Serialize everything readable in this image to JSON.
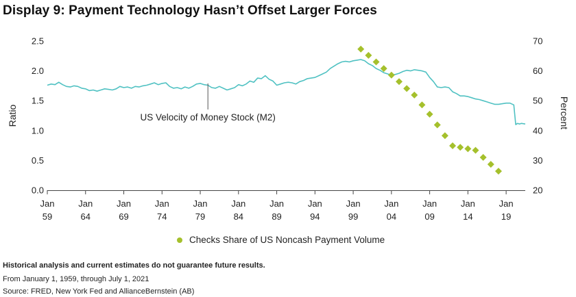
{
  "title": "Display 9: Payment Technology Hasn’t Offset Larger Forces",
  "footnotes": {
    "disclaimer": "Historical analysis and current estimates do not guarantee future results.",
    "period": "From January 1, 1959, through July 1, 2021",
    "source": "Source: FRED, New York Fed and AllianceBernstein (AB)"
  },
  "colors": {
    "velocity": "#4fc1c2",
    "checks": "#a5c02c",
    "axis": "#444444"
  },
  "chart_data": {
    "type": "line",
    "left_axis": {
      "label": "Ratio",
      "ticks": [
        "0.0",
        "0.5",
        "1.0",
        "1.5",
        "2.0",
        "2.5"
      ],
      "range": [
        0,
        2.5
      ]
    },
    "right_axis": {
      "label": "Percent",
      "ticks": [
        "20",
        "30",
        "40",
        "50",
        "60",
        "70"
      ],
      "range": [
        20,
        70
      ]
    },
    "x_ticks": [
      {
        "year": 1959,
        "top": "Jan",
        "bottom": "59"
      },
      {
        "year": 1964,
        "top": "Jan",
        "bottom": "64"
      },
      {
        "year": 1969,
        "top": "Jan",
        "bottom": "69"
      },
      {
        "year": 1974,
        "top": "Jan",
        "bottom": "74"
      },
      {
        "year": 1979,
        "top": "Jan",
        "bottom": "79"
      },
      {
        "year": 1984,
        "top": "Jan",
        "bottom": "84"
      },
      {
        "year": 1989,
        "top": "Jan",
        "bottom": "89"
      },
      {
        "year": 1994,
        "top": "Jan",
        "bottom": "94"
      },
      {
        "year": 1999,
        "top": "Jan",
        "bottom": "99"
      },
      {
        "year": 2004,
        "top": "Jan",
        "bottom": "04"
      },
      {
        "year": 2009,
        "top": "Jan",
        "bottom": "09"
      },
      {
        "year": 2014,
        "top": "Jan",
        "bottom": "14"
      },
      {
        "year": 2019,
        "top": "Jan",
        "bottom": "19"
      }
    ],
    "x_range": [
      1959,
      2021.5
    ],
    "annotation": {
      "text": "US Velocity of Money Stock (M2)",
      "x": 1980,
      "y": 1.79
    },
    "series": [
      {
        "name": "US Velocity of Money Stock (M2)",
        "axis": "left",
        "points": [
          [
            1959,
            1.76
          ],
          [
            1959.5,
            1.78
          ],
          [
            1960,
            1.77
          ],
          [
            1960.5,
            1.81
          ],
          [
            1961,
            1.77
          ],
          [
            1961.5,
            1.74
          ],
          [
            1962,
            1.73
          ],
          [
            1962.5,
            1.75
          ],
          [
            1963,
            1.74
          ],
          [
            1963.5,
            1.71
          ],
          [
            1964,
            1.7
          ],
          [
            1964.5,
            1.67
          ],
          [
            1965,
            1.68
          ],
          [
            1965.5,
            1.66
          ],
          [
            1966,
            1.68
          ],
          [
            1966.5,
            1.7
          ],
          [
            1967,
            1.69
          ],
          [
            1967.5,
            1.68
          ],
          [
            1968,
            1.7
          ],
          [
            1968.5,
            1.74
          ],
          [
            1969,
            1.72
          ],
          [
            1969.5,
            1.73
          ],
          [
            1970,
            1.71
          ],
          [
            1970.5,
            1.74
          ],
          [
            1971,
            1.73
          ],
          [
            1971.5,
            1.75
          ],
          [
            1972,
            1.76
          ],
          [
            1972.5,
            1.78
          ],
          [
            1973,
            1.8
          ],
          [
            1973.5,
            1.77
          ],
          [
            1974,
            1.79
          ],
          [
            1974.5,
            1.8
          ],
          [
            1975,
            1.74
          ],
          [
            1975.5,
            1.71
          ],
          [
            1976,
            1.72
          ],
          [
            1976.5,
            1.7
          ],
          [
            1977,
            1.73
          ],
          [
            1977.5,
            1.71
          ],
          [
            1978,
            1.74
          ],
          [
            1978.5,
            1.78
          ],
          [
            1979,
            1.79
          ],
          [
            1979.5,
            1.77
          ],
          [
            1980,
            1.76
          ],
          [
            1980.5,
            1.72
          ],
          [
            1981,
            1.71
          ],
          [
            1981.5,
            1.74
          ],
          [
            1982,
            1.71
          ],
          [
            1982.5,
            1.68
          ],
          [
            1983,
            1.7
          ],
          [
            1983.5,
            1.72
          ],
          [
            1984,
            1.77
          ],
          [
            1984.5,
            1.75
          ],
          [
            1985,
            1.78
          ],
          [
            1985.5,
            1.83
          ],
          [
            1986,
            1.81
          ],
          [
            1986.5,
            1.88
          ],
          [
            1987,
            1.87
          ],
          [
            1987.5,
            1.92
          ],
          [
            1988,
            1.86
          ],
          [
            1988.5,
            1.83
          ],
          [
            1989,
            1.76
          ],
          [
            1989.5,
            1.78
          ],
          [
            1990,
            1.8
          ],
          [
            1990.5,
            1.81
          ],
          [
            1991,
            1.8
          ],
          [
            1991.5,
            1.78
          ],
          [
            1992,
            1.82
          ],
          [
            1992.5,
            1.84
          ],
          [
            1993,
            1.87
          ],
          [
            1993.5,
            1.88
          ],
          [
            1994,
            1.89
          ],
          [
            1994.5,
            1.92
          ],
          [
            1995,
            1.95
          ],
          [
            1995.5,
            1.98
          ],
          [
            1996,
            2.04
          ],
          [
            1996.5,
            2.08
          ],
          [
            1997,
            2.12
          ],
          [
            1997.5,
            2.15
          ],
          [
            1998,
            2.16
          ],
          [
            1998.5,
            2.15
          ],
          [
            1999,
            2.17
          ],
          [
            1999.5,
            2.18
          ],
          [
            2000,
            2.19
          ],
          [
            2000.5,
            2.17
          ],
          [
            2001,
            2.12
          ],
          [
            2001.5,
            2.09
          ],
          [
            2002,
            2.04
          ],
          [
            2002.5,
            2.01
          ],
          [
            2003,
            1.97
          ],
          [
            2003.5,
            1.95
          ],
          [
            2004,
            1.93
          ],
          [
            2004.5,
            1.94
          ],
          [
            2005,
            1.96
          ],
          [
            2005.5,
            1.99
          ],
          [
            2006,
            2.01
          ],
          [
            2006.5,
            2.0
          ],
          [
            2007,
            2.02
          ],
          [
            2007.5,
            2.01
          ],
          [
            2008,
            2.0
          ],
          [
            2008.5,
            1.98
          ],
          [
            2009,
            1.89
          ],
          [
            2009.5,
            1.82
          ],
          [
            2010,
            1.73
          ],
          [
            2010.5,
            1.72
          ],
          [
            2011,
            1.73
          ],
          [
            2011.5,
            1.72
          ],
          [
            2012,
            1.65
          ],
          [
            2012.5,
            1.62
          ],
          [
            2013,
            1.58
          ],
          [
            2013.5,
            1.58
          ],
          [
            2014,
            1.57
          ],
          [
            2014.5,
            1.55
          ],
          [
            2015,
            1.53
          ],
          [
            2015.5,
            1.52
          ],
          [
            2016,
            1.5
          ],
          [
            2016.5,
            1.48
          ],
          [
            2017,
            1.46
          ],
          [
            2017.5,
            1.44
          ],
          [
            2018,
            1.44
          ],
          [
            2018.5,
            1.45
          ],
          [
            2019,
            1.46
          ],
          [
            2019.5,
            1.46
          ],
          [
            2020,
            1.43
          ],
          [
            2020.25,
            1.1
          ],
          [
            2020.5,
            1.12
          ],
          [
            2020.75,
            1.11
          ],
          [
            2021,
            1.12
          ],
          [
            2021.5,
            1.11
          ]
        ]
      },
      {
        "name": "Checks Share of US Noncash Payment Volume",
        "axis": "right",
        "points": [
          [
            2000,
            67.3
          ],
          [
            2001,
            65.2
          ],
          [
            2002,
            63.0
          ],
          [
            2003,
            60.8
          ],
          [
            2004,
            58.6
          ],
          [
            2005,
            56.4
          ],
          [
            2006,
            54.1
          ],
          [
            2007,
            51.9
          ],
          [
            2008,
            48.6
          ],
          [
            2009,
            45.5
          ],
          [
            2010,
            41.9
          ],
          [
            2011,
            38.3
          ],
          [
            2012,
            34.9
          ],
          [
            2013,
            34.4
          ],
          [
            2014,
            33.9
          ],
          [
            2015,
            33.4
          ],
          [
            2016,
            31.0
          ],
          [
            2017,
            28.7
          ],
          [
            2018,
            26.4
          ]
        ]
      }
    ]
  }
}
